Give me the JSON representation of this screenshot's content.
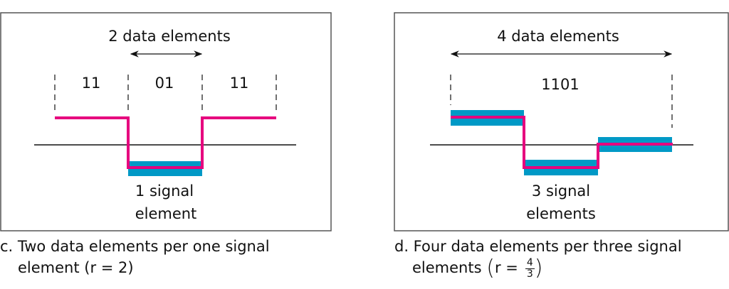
{
  "colors": {
    "signal": "#e6007e",
    "signal_element": "#0099c6",
    "axis": "#111111",
    "frame": "#555555"
  },
  "panel_c": {
    "span_label": "2 data elements",
    "data_labels": [
      "11",
      "01",
      "11"
    ],
    "signal_label_line1": "1 signal",
    "signal_label_line2": "element",
    "caption_line1": "c. Two data elements per one signal",
    "caption_line2": "element (r = 2)",
    "signal_levels": [
      "high",
      "low",
      "high"
    ]
  },
  "panel_d": {
    "span_label": "4 data elements",
    "data_label": "1101",
    "signal_label_line1": "3 signal",
    "signal_label_line2": "elements",
    "caption_line1": "d. Four data elements per three signal",
    "caption_line2_prefix": "elements",
    "ratio_lhs": "r =",
    "ratio_numerator": "4",
    "ratio_denominator": "3",
    "signal_levels": [
      "high",
      "low",
      "zero"
    ]
  }
}
